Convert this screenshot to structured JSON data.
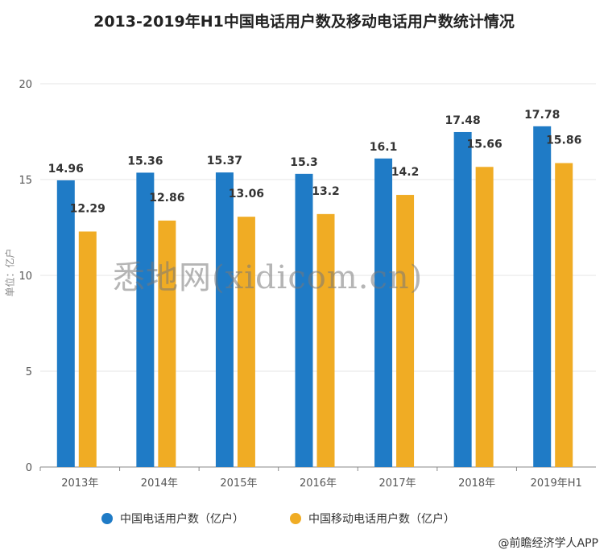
{
  "chart_data": {
    "type": "bar",
    "title": "2013-2019年H1中国电话用户数及移动电话用户数统计情况",
    "categories": [
      "2013年",
      "2014年",
      "2015年",
      "2016年",
      "2017年",
      "2018年",
      "2019年H1"
    ],
    "series": [
      {
        "name": "中国电话用户数（亿户）",
        "color": "#1f7bc6",
        "values": [
          14.96,
          15.36,
          15.37,
          15.3,
          16.1,
          17.48,
          17.78
        ]
      },
      {
        "name": "中国移动电话用户数（亿户）",
        "color": "#f0ac24",
        "values": [
          12.29,
          12.86,
          13.06,
          13.2,
          14.2,
          15.66,
          15.86
        ]
      }
    ],
    "y_ticks": [
      0,
      5,
      10,
      15,
      20
    ],
    "ylim": [
      0,
      20
    ],
    "ylabel": "单位：亿户",
    "xlabel": "",
    "grid": true,
    "legend_position": "bottom"
  },
  "watermark": "悉地网(xidicom.cn)",
  "source": "@前瞻经济学人APP"
}
